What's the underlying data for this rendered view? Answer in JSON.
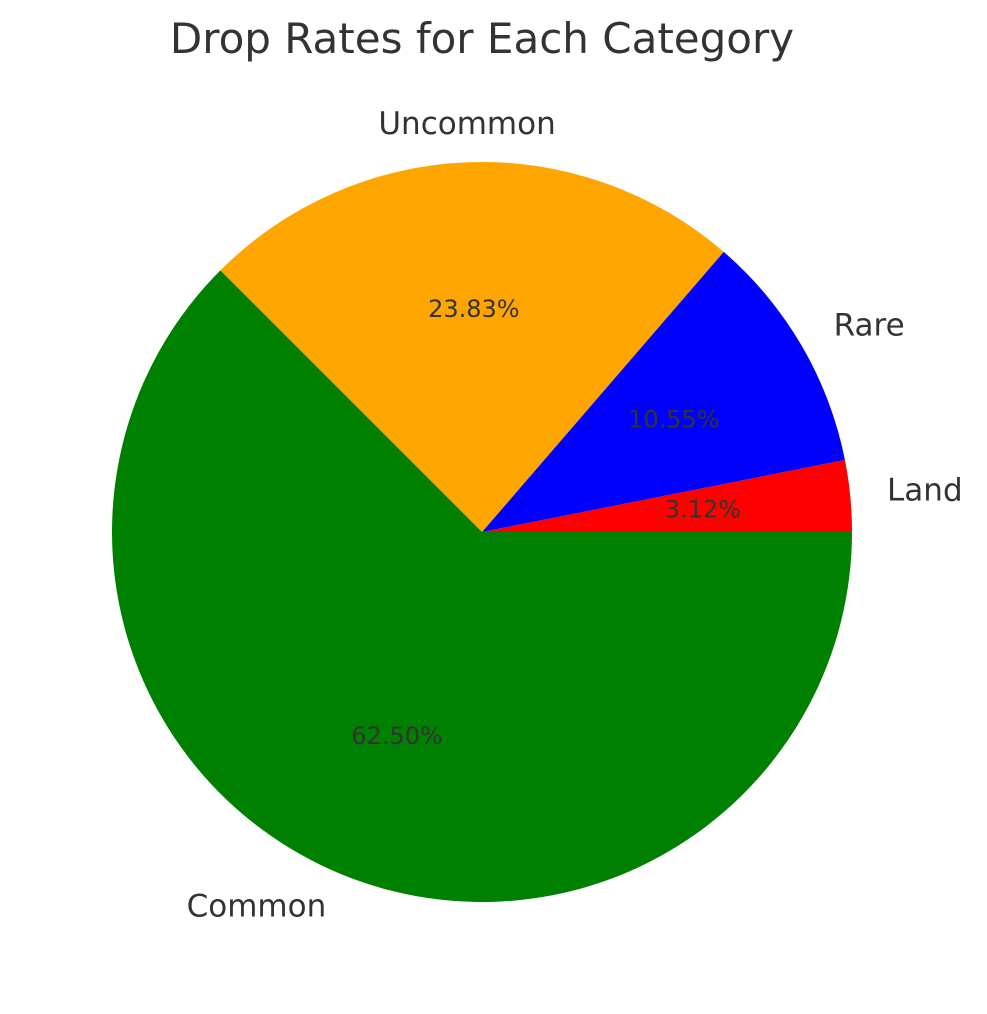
{
  "chart_data": {
    "type": "pie",
    "title": "Drop Rates for Each Category",
    "slices": [
      {
        "label": "Land",
        "value": 3.12,
        "pct_label": "3.12%",
        "color": "#ff0000"
      },
      {
        "label": "Rare",
        "value": 10.55,
        "pct_label": "10.55%",
        "color": "#0000ff"
      },
      {
        "label": "Uncommon",
        "value": 23.83,
        "pct_label": "23.83%",
        "color": "#ffa500"
      },
      {
        "label": "Common",
        "value": 62.5,
        "pct_label": "62.50%",
        "color": "#008000"
      }
    ],
    "start_angle_deg": 0,
    "direction": "counterclockwise"
  }
}
